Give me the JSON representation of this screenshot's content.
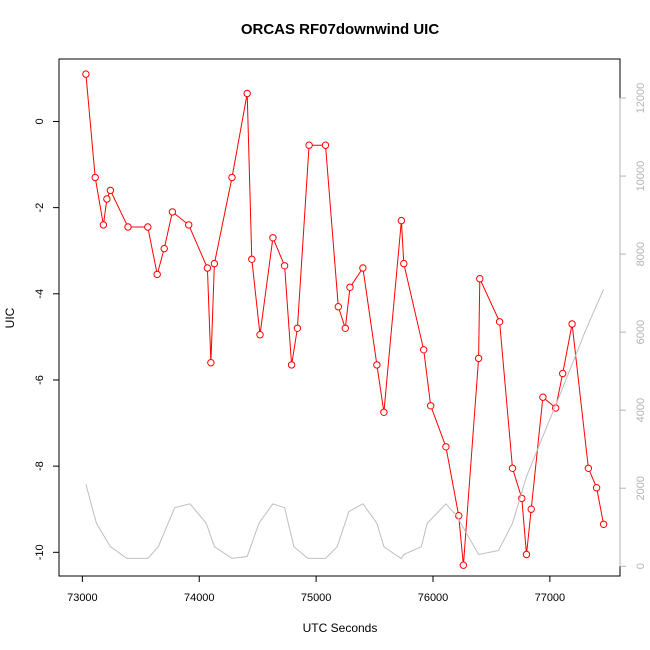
{
  "chart_data": {
    "type": "line",
    "title": "ORCAS RF07downwind UIC",
    "xlabel": "UTC Seconds",
    "ylabel": "UIC",
    "xlim": [
      72800,
      77600
    ],
    "ylim": [
      -10.55,
      1.45
    ],
    "x_ticks": [
      73000,
      74000,
      75000,
      76000,
      77000
    ],
    "y_ticks": [
      0,
      -2,
      -4,
      -6,
      -8,
      -10
    ],
    "y2lim": [
      -250,
      13000
    ],
    "y2_ticks": [
      0,
      2000,
      4000,
      6000,
      8000,
      10000,
      12000
    ],
    "grid": false,
    "colors": {
      "primary": "#ff0000",
      "secondary": "#bebebe",
      "axis": "#000000",
      "axis_right": "#b3b3b3"
    },
    "series": [
      {
        "axis": "left",
        "style": "line-with-open-circles",
        "x": [
          73030,
          73110,
          73180,
          73210,
          73240,
          73390,
          73560,
          73640,
          73700,
          73770,
          73910,
          74070,
          74100,
          74130,
          74280,
          74410,
          74450,
          74520,
          74630,
          74730,
          74790,
          74840,
          74940,
          75080,
          75190,
          75250,
          75290,
          75400,
          75520,
          75580,
          75730,
          75750,
          75920,
          75980,
          76110,
          76220,
          76260,
          76390,
          76400,
          76570,
          76680,
          76760,
          76800,
          76840,
          76940,
          77050,
          77110,
          77190,
          77330,
          77400,
          77460
        ],
        "y": [
          1.1,
          -1.3,
          -2.4,
          -1.8,
          -1.6,
          -2.45,
          -2.45,
          -3.55,
          -2.95,
          -2.1,
          -2.4,
          -3.4,
          -5.6,
          -3.3,
          -1.3,
          0.65,
          -3.2,
          -4.95,
          -2.7,
          -3.35,
          -5.65,
          -4.8,
          -0.55,
          -0.55,
          -4.3,
          -4.8,
          -3.85,
          -3.4,
          -5.65,
          -6.75,
          -2.3,
          -3.3,
          -5.3,
          -6.6,
          -7.55,
          -9.15,
          -10.3,
          -5.5,
          -3.65,
          -4.65,
          -8.05,
          -8.75,
          -10.05,
          -9.0,
          -6.4,
          -6.65,
          -5.85,
          -4.7,
          -8.05,
          -8.5,
          -9.35
        ]
      },
      {
        "axis": "right",
        "style": "line",
        "x": [
          73030,
          73120,
          73240,
          73380,
          73560,
          73650,
          73790,
          73920,
          74060,
          74130,
          74280,
          74410,
          74510,
          74630,
          74730,
          74810,
          74930,
          75080,
          75180,
          75280,
          75400,
          75520,
          75580,
          75700,
          75730,
          75750,
          75900,
          75950,
          76110,
          76200,
          76390,
          76560,
          76680,
          76800,
          76950,
          77100,
          77300,
          77460
        ],
        "y": [
          2100,
          1100,
          500,
          200,
          200,
          500,
          1500,
          1600,
          1100,
          500,
          200,
          250,
          1100,
          1600,
          1500,
          500,
          200,
          200,
          500,
          1400,
          1600,
          1100,
          500,
          250,
          200,
          300,
          500,
          1100,
          1600,
          1300,
          300,
          400,
          1100,
          2300,
          3400,
          4500,
          6000,
          7100
        ]
      }
    ]
  }
}
